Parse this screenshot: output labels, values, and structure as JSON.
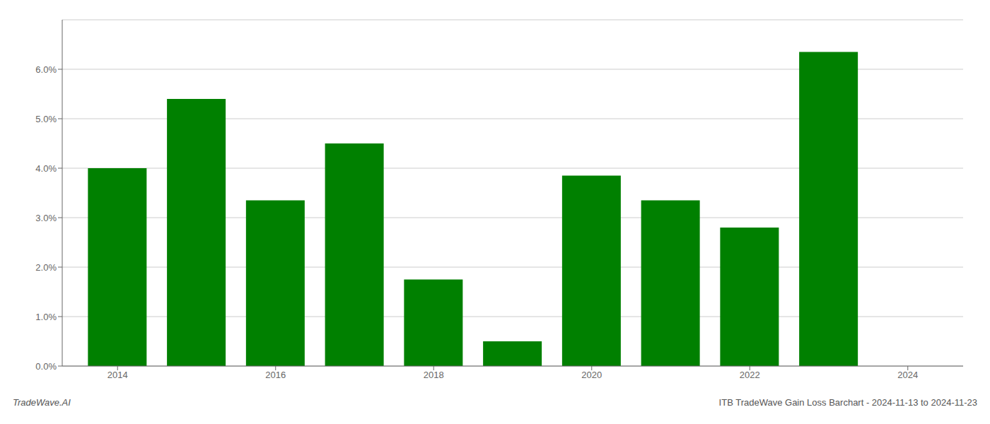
{
  "chart_data": {
    "type": "bar",
    "x": [
      2014,
      2015,
      2016,
      2017,
      2018,
      2019,
      2020,
      2021,
      2022,
      2023
    ],
    "values": [
      0.04,
      0.054,
      0.0335,
      0.045,
      0.0175,
      0.005,
      0.0385,
      0.0335,
      0.028,
      0.0635
    ],
    "color": "#008000",
    "xlim": [
      2013.3,
      2024.7
    ],
    "xticks": [
      2014,
      2016,
      2018,
      2020,
      2022,
      2024
    ],
    "ylim": [
      0,
      0.07
    ],
    "yticks": [
      {
        "value": 0.0,
        "label": "0.0%"
      },
      {
        "value": 0.01,
        "label": "1.0%"
      },
      {
        "value": 0.02,
        "label": "2.0%"
      },
      {
        "value": 0.03,
        "label": "3.0%"
      },
      {
        "value": 0.04,
        "label": "4.0%"
      },
      {
        "value": 0.05,
        "label": "5.0%"
      },
      {
        "value": 0.06,
        "label": "6.0%"
      }
    ],
    "grid": true,
    "annotations": [
      "TradeWave.AI",
      "ITB TradeWave Gain Loss Barchart - 2024-11-13 to 2024-11-23"
    ]
  }
}
